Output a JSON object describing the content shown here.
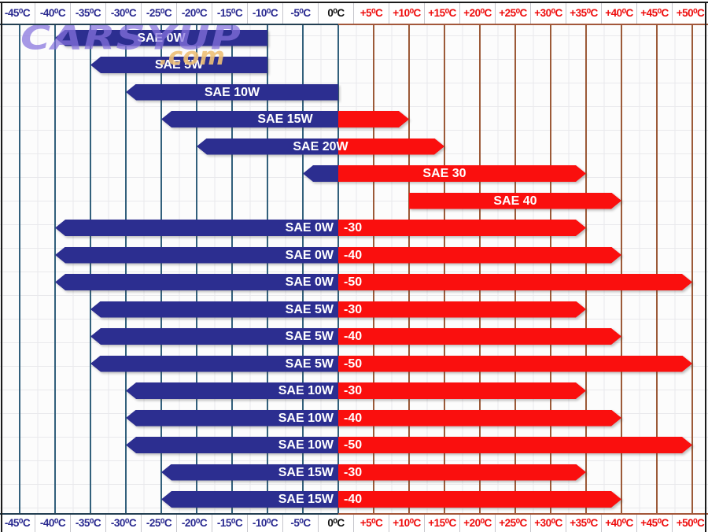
{
  "watermark": {
    "brand": "CARSYUP",
    "tld": ".com"
  },
  "colors": {
    "cold_bar": "#2c2e90",
    "hot_bar": "#fa0f0e",
    "cold_grid": "#32607c",
    "hot_grid": "#9c5a38",
    "cold_tick_text": "#2a2a90",
    "zero_tick_text": "#111111",
    "hot_tick_text": "#ee0d0d",
    "cold_divider": "#233f52",
    "hot_divider": "#a3573a",
    "brand_purple": "#8672de",
    "brand_orange": "#eec077",
    "bar_label_text": "#ffffff"
  },
  "axis": {
    "tick_labels": [
      "-45⁰C",
      "-40⁰C",
      "-35⁰C",
      "-30⁰C",
      "-25⁰C",
      "-20⁰C",
      "-15⁰C",
      "-10⁰C",
      "-5⁰C",
      "0⁰C",
      "+5⁰C",
      "+10⁰C",
      "+15⁰C",
      "+20⁰C",
      "+25⁰C",
      "+30⁰C",
      "+35⁰C",
      "+40⁰C",
      "+45⁰C",
      "+50⁰C"
    ],
    "tick_values": [
      -45,
      -40,
      -35,
      -30,
      -25,
      -20,
      -15,
      -10,
      -5,
      0,
      5,
      10,
      15,
      20,
      25,
      30,
      35,
      40,
      45,
      50
    ]
  },
  "chart_data": {
    "type": "bar",
    "subtype": "horizontal-temperature-range",
    "x_unit": "⁰C",
    "xlim": [
      -47.5,
      52.5
    ],
    "x_ticks": [
      -45,
      -40,
      -35,
      -30,
      -25,
      -20,
      -15,
      -10,
      -5,
      0,
      5,
      10,
      15,
      20,
      25,
      30,
      35,
      40,
      45,
      50
    ],
    "color_split_at_c": 0,
    "legend_note_cold_color_below_0": true,
    "bars": [
      {
        "label": "SAE 0W",
        "label_cold": "SAE 0W",
        "label_hot": "",
        "min_c": -40,
        "max_c": -10,
        "left_arrow": true,
        "right_arrow": false,
        "label_anchor": "center"
      },
      {
        "label": "SAE 5W",
        "label_cold": "SAE 5W",
        "label_hot": "",
        "min_c": -35,
        "max_c": -10,
        "left_arrow": true,
        "right_arrow": false,
        "label_anchor": "center"
      },
      {
        "label": "SAE 10W",
        "label_cold": "SAE 10W",
        "label_hot": "",
        "min_c": -30,
        "max_c": 0,
        "left_arrow": true,
        "right_arrow": false,
        "label_anchor": "center"
      },
      {
        "label": "SAE 15W",
        "label_cold": "SAE 15W",
        "label_hot": "",
        "min_c": -25,
        "max_c": 10,
        "left_arrow": true,
        "right_arrow": true,
        "label_anchor": "center"
      },
      {
        "label": "SAE 20W",
        "label_cold": "SAE 20W",
        "label_hot": "",
        "min_c": -20,
        "max_c": 15,
        "left_arrow": true,
        "right_arrow": true,
        "label_anchor": "center"
      },
      {
        "label": "SAE 30",
        "label_cold": "",
        "label_hot": "SAE 30",
        "min_c": -5,
        "max_c": 35,
        "left_arrow": true,
        "right_arrow": true,
        "label_anchor": "center"
      },
      {
        "label": "SAE 40",
        "label_cold": "",
        "label_hot": "SAE 40",
        "min_c": 10,
        "max_c": 40,
        "left_arrow": false,
        "right_arrow": true,
        "label_anchor": "center"
      },
      {
        "label": "SAE 0W-30",
        "label_cold": "SAE 0W",
        "label_hot": "-30",
        "min_c": -40,
        "max_c": 35,
        "left_arrow": true,
        "right_arrow": true,
        "label_anchor": "split"
      },
      {
        "label": "SAE 0W-40",
        "label_cold": "SAE 0W",
        "label_hot": "-40",
        "min_c": -40,
        "max_c": 40,
        "left_arrow": true,
        "right_arrow": true,
        "label_anchor": "split"
      },
      {
        "label": "SAE 0W-50",
        "label_cold": "SAE 0W",
        "label_hot": "-50",
        "min_c": -40,
        "max_c": 50,
        "left_arrow": true,
        "right_arrow": true,
        "label_anchor": "split"
      },
      {
        "label": "SAE 5W-30",
        "label_cold": "SAE 5W",
        "label_hot": "-30",
        "min_c": -35,
        "max_c": 35,
        "left_arrow": true,
        "right_arrow": true,
        "label_anchor": "split"
      },
      {
        "label": "SAE 5W-40",
        "label_cold": "SAE 5W",
        "label_hot": "-40",
        "min_c": -35,
        "max_c": 40,
        "left_arrow": true,
        "right_arrow": true,
        "label_anchor": "split"
      },
      {
        "label": "SAE 5W-50",
        "label_cold": "SAE 5W",
        "label_hot": "-50",
        "min_c": -35,
        "max_c": 50,
        "left_arrow": true,
        "right_arrow": true,
        "label_anchor": "split"
      },
      {
        "label": "SAE 10W-30",
        "label_cold": "SAE 10W",
        "label_hot": "-30",
        "min_c": -30,
        "max_c": 35,
        "left_arrow": true,
        "right_arrow": true,
        "label_anchor": "split"
      },
      {
        "label": "SAE 10W-40",
        "label_cold": "SAE 10W",
        "label_hot": "-40",
        "min_c": -30,
        "max_c": 40,
        "left_arrow": true,
        "right_arrow": true,
        "label_anchor": "split"
      },
      {
        "label": "SAE 10W-50",
        "label_cold": "SAE 10W",
        "label_hot": "-50",
        "min_c": -30,
        "max_c": 50,
        "left_arrow": true,
        "right_arrow": true,
        "label_anchor": "split"
      },
      {
        "label": "SAE 15W-30",
        "label_cold": "SAE 15W",
        "label_hot": "-30",
        "min_c": -25,
        "max_c": 35,
        "left_arrow": true,
        "right_arrow": true,
        "label_anchor": "split"
      },
      {
        "label": "SAE 15W-40",
        "label_cold": "SAE 15W",
        "label_hot": "-40",
        "min_c": -25,
        "max_c": 40,
        "left_arrow": true,
        "right_arrow": true,
        "label_anchor": "split"
      }
    ]
  }
}
